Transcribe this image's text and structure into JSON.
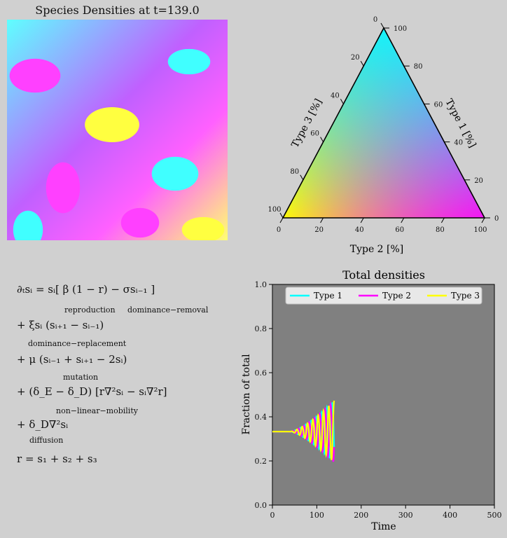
{
  "heatmap": {
    "title": "Species Densities at t=139.0"
  },
  "ternary": {
    "axis_labels": [
      "Type 1 [%]",
      "Type 2 [%]",
      "Type 3 [%]"
    ],
    "ticks": [
      "0",
      "20",
      "40",
      "60",
      "80",
      "100"
    ],
    "colors": {
      "type1": "#ff00ff",
      "type2": "#ffff00",
      "type3": "#00ffff"
    }
  },
  "equations": {
    "line1": "∂ₜsᵢ = sᵢ[ β (1 − r) −   σsᵢ₋₁   ]",
    "line1_labels": [
      "reproduction",
      "dominance−removal"
    ],
    "line2": "+  ξsᵢ (sᵢ₊₁ − sᵢ₋₁)",
    "line2_label": "dominance−replacement",
    "line3": "+ μ (sᵢ₋₁ + sᵢ₊₁ − 2sᵢ)",
    "line3_label": "mutation",
    "line4": "+ (δ_E − δ_D) [r∇²sᵢ − sᵢ∇²r]",
    "line4_label": "non−linear−mobility",
    "line5": "+ δ_D∇²sᵢ",
    "line5_label": "diffusion",
    "line6": "r = s₁ + s₂ + s₃"
  },
  "chart_data": {
    "type": "line",
    "title": "Total densities",
    "xlabel": "Time",
    "ylabel": "Fraction of total",
    "xlim": [
      0,
      500
    ],
    "ylim": [
      0,
      1
    ],
    "xticks": [
      0,
      100,
      200,
      300,
      400,
      500
    ],
    "yticks": [
      0.0,
      0.2,
      0.4,
      0.6,
      0.8,
      1.0
    ],
    "background": "#808080",
    "legend": "top",
    "series": [
      {
        "name": "Type 1",
        "color": "#00ffff",
        "phase": 0
      },
      {
        "name": "Type 2",
        "color": "#ff00ff",
        "phase": 2.094
      },
      {
        "name": "Type 3",
        "color": "#ffff00",
        "phase": 4.189
      }
    ],
    "t_end": 139,
    "baseline": 0.333,
    "onset": 40,
    "period": 12,
    "max_amplitude": 0.14
  }
}
